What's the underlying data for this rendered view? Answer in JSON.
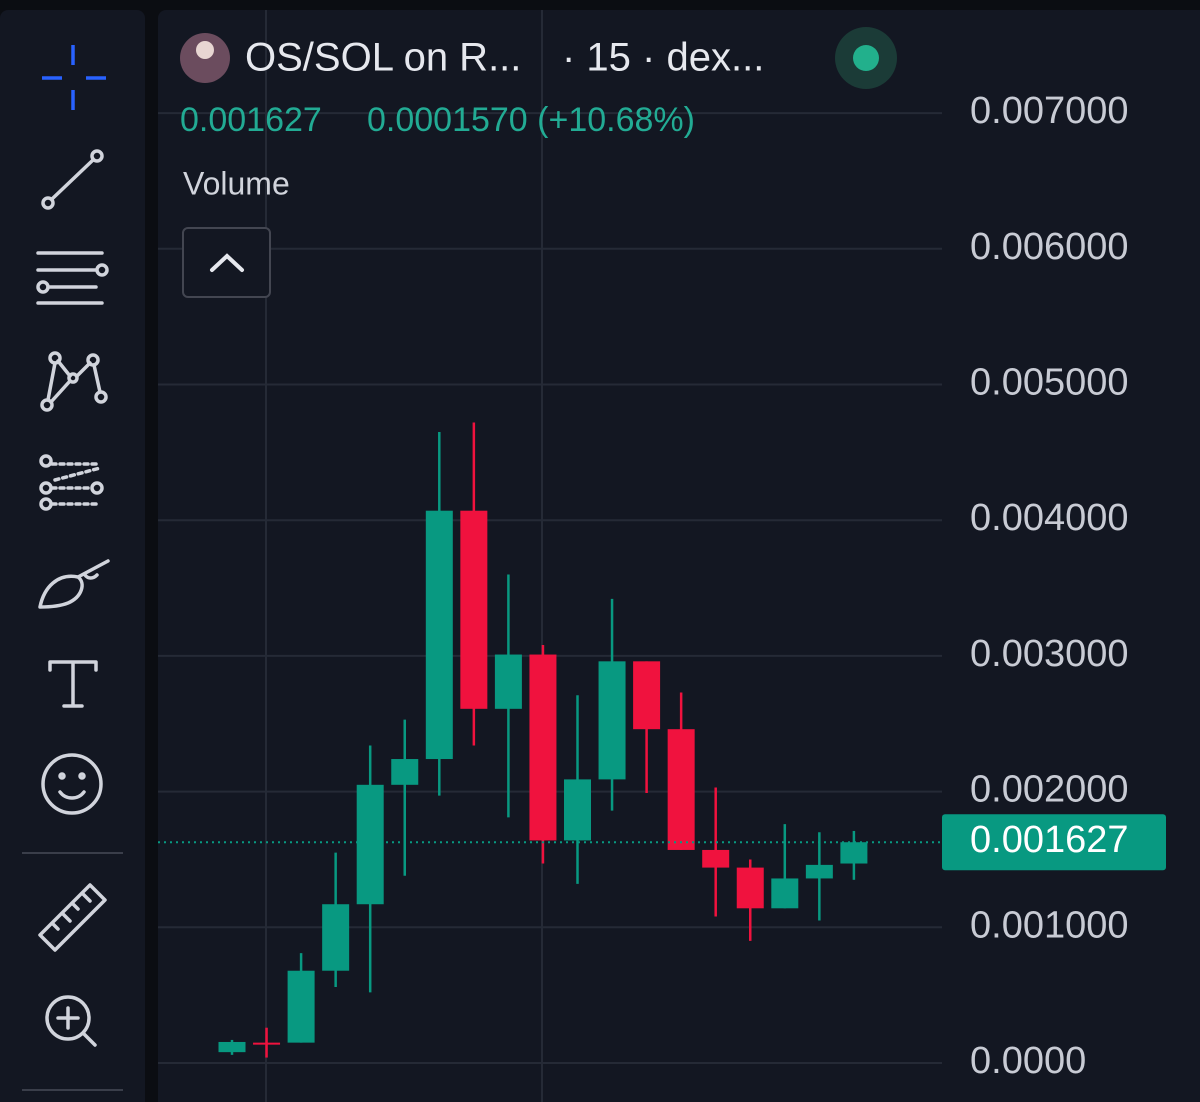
{
  "chart_data": {
    "type": "candlestick",
    "title": "OS/SOL on R...",
    "subtitle": "· 15 · dex...",
    "last_price": "0.001627",
    "change": "0.0001570 (+10.68%)",
    "volume_label": "Volume",
    "categories": [
      null,
      null,
      null,
      null,
      null,
      null,
      null,
      null,
      null,
      null,
      null,
      null,
      null,
      null,
      null,
      null,
      null,
      null,
      null
    ],
    "open": [
      8e-05,
      0.00015,
      0.00015,
      0.00068,
      0.00117,
      0.00205,
      0.00224,
      0.00407,
      0.00261,
      0.00301,
      0.00164,
      0.00209,
      0.00296,
      0.00246,
      0.00157,
      0.00144,
      0.00114,
      0.00136,
      0.00147
    ],
    "high": [
      0.00017,
      0.00026,
      0.00081,
      0.00155,
      0.00234,
      0.00253,
      0.00465,
      0.00472,
      0.0036,
      0.00308,
      0.00271,
      0.00342,
      0.00296,
      0.00273,
      0.00203,
      0.0015,
      0.00176,
      0.0017,
      0.00171
    ],
    "low": [
      6e-05,
      4e-05,
      0.00015,
      0.00056,
      0.00052,
      0.00138,
      0.00197,
      0.00234,
      0.00181,
      0.00147,
      0.00132,
      0.00186,
      0.00199,
      0.00157,
      0.00108,
      0.0009,
      0.00114,
      0.00105,
      0.00135
    ],
    "close": [
      0.000155,
      0.00014,
      0.00068,
      0.00117,
      0.00205,
      0.00224,
      0.00407,
      0.00261,
      0.00301,
      0.00164,
      0.00209,
      0.00296,
      0.00246,
      0.00157,
      0.00144,
      0.00114,
      0.00136,
      0.00146,
      0.001627
    ],
    "up_color": "#089981",
    "down_color": "#f0123e",
    "ylim": [
      0,
      0.0081
    ],
    "yticks": [
      {
        "value": 0,
        "label": "0.0000"
      },
      {
        "value": 0.001,
        "label": "0.001000"
      },
      {
        "value": 0.002,
        "label": "0.002000"
      },
      {
        "value": 0.003,
        "label": "0.003000"
      },
      {
        "value": 0.004,
        "label": "0.004000"
      },
      {
        "value": 0.005,
        "label": "0.005000"
      },
      {
        "value": 0.006,
        "label": "0.006000"
      },
      {
        "value": 0.007,
        "label": "0.007000"
      }
    ],
    "current_price": {
      "value": 0.001627,
      "label": "0.001627"
    },
    "grid": true
  }
}
